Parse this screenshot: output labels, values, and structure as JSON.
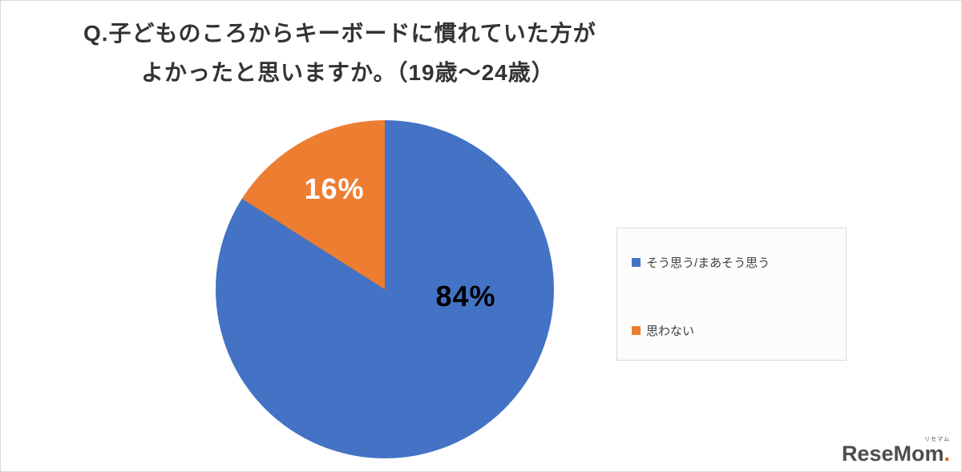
{
  "title": {
    "line1": "Q.子どものころからキーボードに慣れていた方が",
    "line2": "よかったと思いますか。（19歳〜24歳）"
  },
  "chart_data": {
    "type": "pie",
    "title": "Q.子どものころからキーボードに慣れていた方がよかったと思いますか。（19歳〜24歳）",
    "start_angle_deg": 0,
    "direction": "clockwise",
    "legend_position": "right",
    "slices": [
      {
        "label": "そう思う/まあそう思う",
        "value": 84,
        "data_label": "84%",
        "color": "#4472C4",
        "label_color": "#000000"
      },
      {
        "label": "思わない",
        "value": 16,
        "data_label": "16%",
        "color": "#ED7D31",
        "label_color": "#ffffff"
      }
    ]
  },
  "legend": {
    "items": [
      {
        "label": "そう思う/まあそう思う",
        "color": "#4472C4"
      },
      {
        "label": "思わない",
        "color": "#ED7D31"
      }
    ]
  },
  "logo": {
    "text": "ReseMom",
    "dot": ".",
    "small_text": "リセマム"
  }
}
